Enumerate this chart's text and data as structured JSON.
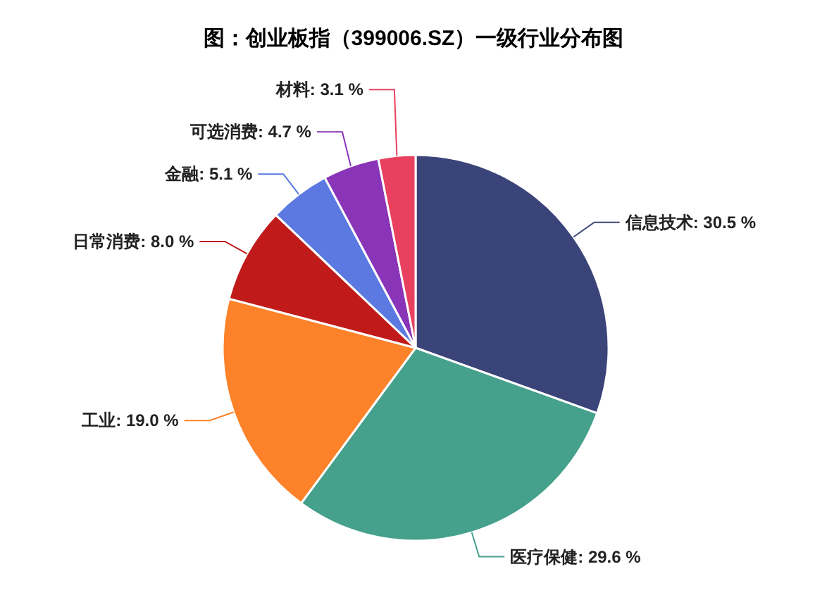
{
  "chart_data": {
    "type": "pie",
    "title": "图：创业板指（399006.SZ）一级行业分布图",
    "categories": [
      "信息技术",
      "医疗保健",
      "工业",
      "日常消费",
      "金融",
      "可选消费",
      "材料"
    ],
    "values": [
      30.5,
      29.6,
      19.0,
      8.0,
      5.1,
      4.7,
      3.1
    ],
    "value_labels": [
      "30.5 %",
      "29.6 %",
      "19.0 %",
      "8.0 %",
      "5.1 %",
      "4.7 %",
      "3.1 %"
    ],
    "colors": [
      "#3b4479",
      "#45a08c",
      "#fd8229",
      "#c01a1a",
      "#5b79e0",
      "#8a34b8",
      "#e8405e"
    ]
  }
}
